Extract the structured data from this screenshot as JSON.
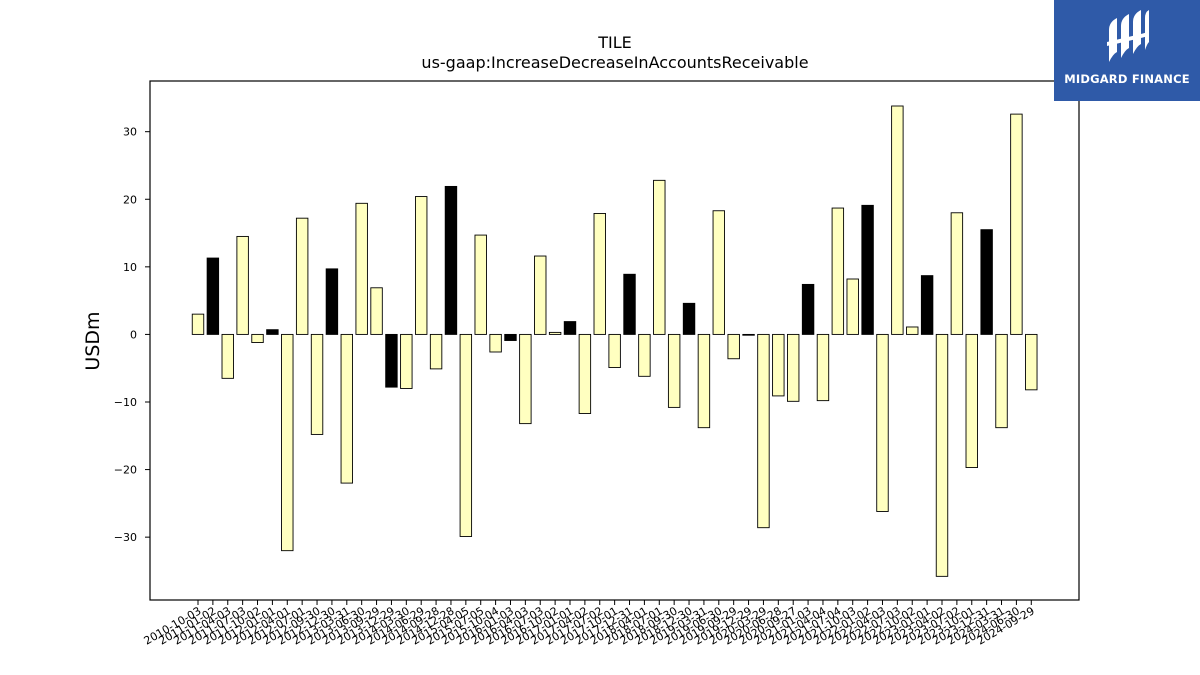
{
  "brand": {
    "name": "MIDGARD FINANCE",
    "bg_color": "#2f5aa8",
    "logo_icon": "midgard-monogram-icon"
  },
  "chart_data": {
    "type": "bar",
    "title": "TILE",
    "subtitle": "us-gaap:IncreaseDecreaseInAccountsReceivable",
    "xlabel": "",
    "ylabel": "USDm",
    "ylim": [
      -39.3,
      37.5
    ],
    "yticks": [
      -30,
      -20,
      -10,
      0,
      10,
      20,
      30
    ],
    "grid": false,
    "colors": {
      "annual": "#000000",
      "quarterly": "#ffffc0",
      "edge": "#000000"
    },
    "categories": [
      "2010-10-03",
      "2011-01-02",
      "2011-04-03",
      "2011-07-03",
      "2011-10-02",
      "2012-01-01",
      "2012-04-01",
      "2012-07-01",
      "2012-09-30",
      "2012-12-30",
      "2013-03-31",
      "2013-06-30",
      "2013-09-29",
      "2013-12-29",
      "2014-03-30",
      "2014-06-29",
      "2014-09-28",
      "2014-12-28",
      "2015-04-05",
      "2015-07-05",
      "2015-10-04",
      "2016-01-03",
      "2016-04-03",
      "2016-07-03",
      "2016-10-02",
      "2017-01-01",
      "2017-04-02",
      "2017-07-02",
      "2017-10-01",
      "2017-12-31",
      "2018-04-01",
      "2018-07-01",
      "2018-09-30",
      "2018-12-30",
      "2019-03-31",
      "2019-06-30",
      "2019-09-29",
      "2019-12-29",
      "2020-03-29",
      "2020-06-28",
      "2020-09-27",
      "2021-01-03",
      "2021-04-04",
      "2021-07-04",
      "2021-10-03",
      "2022-01-02",
      "2022-04-03",
      "2022-07-03",
      "2022-10-02",
      "2023-01-01",
      "2023-04-02",
      "2023-07-02",
      "2023-10-01",
      "2023-12-31",
      "2024-03-31",
      "2024-06-30",
      "2024-09-29"
    ],
    "tick_labels": [
      "2010-10-03",
      "2011-01-02",
      "2011-04-03",
      "2011-07-03",
      "2011-10-02",
      "2012-01-01",
      "2012-04-01",
      "2012-07-01",
      "2012-09-30",
      "2012-12-30",
      "2013-03-31",
      "2013-06-30",
      "2013-09-29",
      "2013-12-29",
      "2014-03-30",
      "2014-06-29",
      "2014-09-28",
      "2014-12-28",
      "2015-04-05",
      "2015-07-05",
      "2015-10-04",
      "2016-01-03",
      "2016-04-03",
      "2016-07-03",
      "2016-10-02",
      "2017-01-01",
      "2017-04-02",
      "2017-07-02",
      "2017-10-01",
      "2017-12-31",
      "2018-04-01",
      "2018-07-01",
      "2018-09-30",
      "2018-12-30",
      "2019-03-31",
      "2019-06-30",
      "2019-09-29",
      "2019-12-29",
      "2020-03-29",
      "2020-06-28",
      "2020-09-27",
      "2021-01-03",
      "2021-04-04",
      "2021-07-04",
      "2021-10-03",
      "2022-01-02",
      "2022-04-03",
      "2022-07-03",
      "2022-10-02",
      "2023-01-01",
      "2023-04-02",
      "2023-07-02",
      "2023-10-01",
      "2023-12-31",
      "2024-03-31",
      "2024-06-30",
      "2024-09-29"
    ],
    "values": [
      3.0,
      11.3,
      -6.5,
      14.5,
      -1.2,
      0.7,
      -32.0,
      17.2,
      -14.8,
      9.7,
      -22.0,
      19.4,
      6.9,
      -7.8,
      -8.0,
      20.4,
      -5.1,
      21.9,
      -29.9,
      14.7,
      -2.6,
      -0.9,
      -13.2,
      11.6,
      0.3,
      1.9,
      -11.7,
      17.9,
      -4.9,
      8.9,
      -6.2,
      22.8,
      -10.8,
      4.6,
      -13.8,
      18.3,
      -3.6,
      0.0,
      -28.6,
      -9.1,
      -9.9,
      7.4,
      -9.8,
      18.7,
      8.2,
      19.1,
      -26.2,
      33.8,
      1.1,
      8.7,
      -35.8,
      18.0,
      -19.7,
      15.5,
      -13.8,
      32.6,
      -8.2
    ],
    "annual": [
      false,
      true,
      false,
      false,
      false,
      true,
      false,
      false,
      false,
      true,
      false,
      false,
      false,
      true,
      false,
      false,
      false,
      true,
      false,
      false,
      false,
      true,
      false,
      false,
      false,
      true,
      false,
      false,
      false,
      true,
      false,
      false,
      false,
      true,
      false,
      false,
      false,
      true,
      false,
      false,
      false,
      true,
      false,
      false,
      false,
      true,
      false,
      false,
      false,
      true,
      false,
      false,
      false,
      true,
      false,
      false,
      false
    ]
  }
}
